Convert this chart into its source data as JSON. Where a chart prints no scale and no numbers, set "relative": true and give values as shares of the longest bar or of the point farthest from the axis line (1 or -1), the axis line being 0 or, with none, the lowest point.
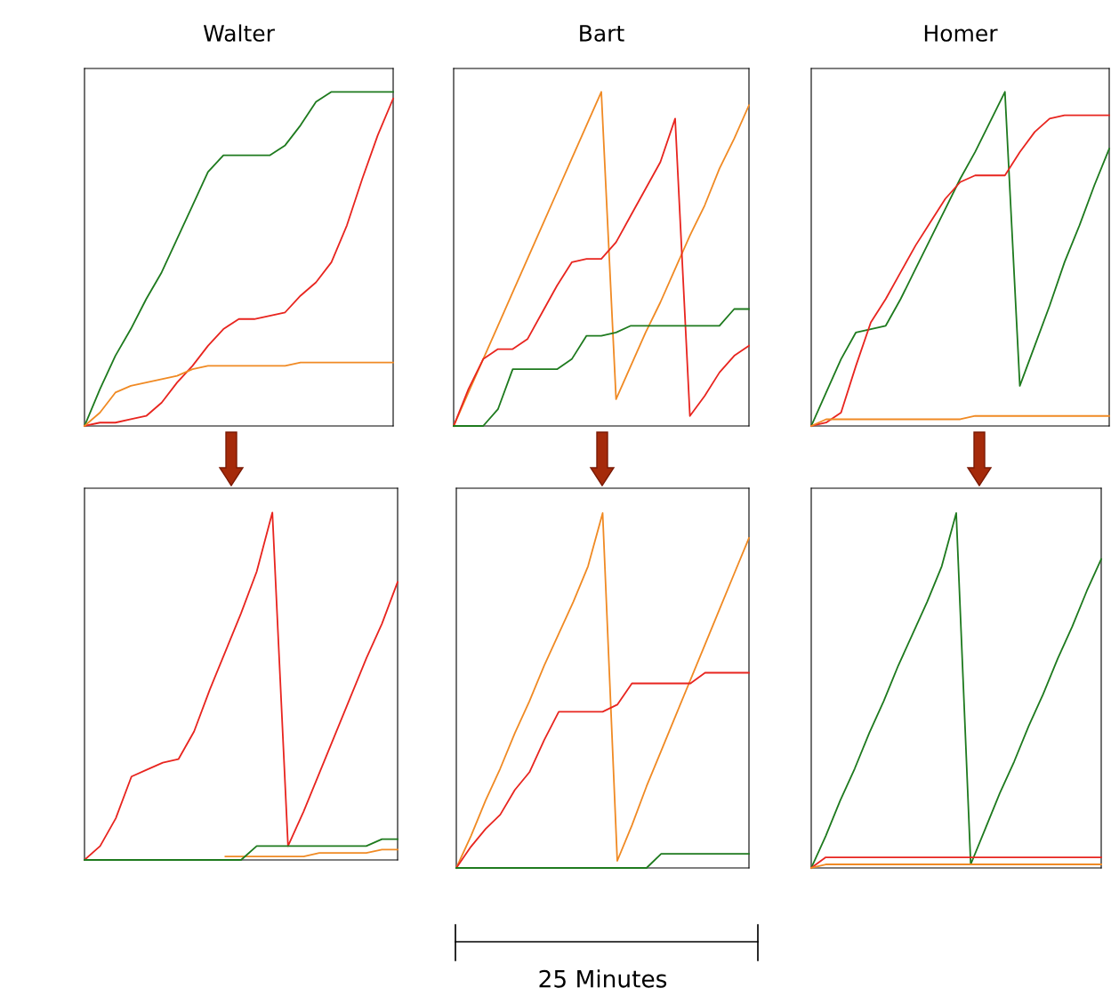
{
  "chart_data": [
    {
      "type": "line",
      "title": "Walter",
      "relative": true,
      "categories": [
        null,
        null,
        null,
        null,
        null,
        null,
        null,
        null,
        null,
        null,
        null,
        null,
        null,
        null,
        null,
        null,
        null,
        null,
        null,
        null,
        null
      ],
      "series": [
        {
          "color": "#1e7a1e",
          "values": [
            0,
            0.11,
            0.21,
            0.29,
            0.38,
            0.46,
            0.56,
            0.66,
            0.76,
            0.81,
            0.81,
            0.81,
            0.81,
            0.84,
            0.9,
            0.97,
            1,
            1,
            1,
            1,
            1
          ]
        },
        {
          "color": "#e8251f",
          "values": [
            0,
            0.01,
            0.01,
            0.02,
            0.03,
            0.07,
            0.13,
            0.18,
            0.24,
            0.29,
            0.32,
            0.32,
            0.33,
            0.34,
            0.39,
            0.43,
            0.49,
            0.6,
            0.74,
            0.87,
            0.98
          ]
        },
        {
          "color": "#f08a24",
          "values": [
            0,
            0.04,
            0.1,
            0.12,
            0.13,
            0.14,
            0.15,
            0.17,
            0.18,
            0.18,
            0.18,
            0.18,
            0.18,
            0.18,
            0.19,
            0.19,
            0.19,
            0.19,
            0.19,
            0.19,
            0.19
          ]
        }
      ]
    },
    {
      "type": "line",
      "title": "Bart",
      "relative": true,
      "categories": [
        null,
        null,
        null,
        null,
        null,
        null,
        null,
        null,
        null,
        null,
        null,
        null,
        null,
        null,
        null,
        null,
        null,
        null,
        null,
        null,
        null
      ],
      "series": [
        {
          "color": "#f08a24",
          "values": [
            0,
            0.1,
            0.2,
            0.3,
            0.4,
            0.5,
            0.6,
            0.7,
            0.8,
            0.9,
            1,
            0.08,
            0.18,
            0.28,
            0.37,
            0.47,
            0.57,
            0.66,
            0.77,
            0.86,
            0.96
          ]
        },
        {
          "color": "#e8251f",
          "values": [
            0,
            0.11,
            0.2,
            0.23,
            0.23,
            0.26,
            0.34,
            0.42,
            0.49,
            0.5,
            0.5,
            0.55,
            0.63,
            0.71,
            0.79,
            0.92,
            0.03,
            0.09,
            0.16,
            0.21,
            0.24
          ]
        },
        {
          "color": "#1e7a1e",
          "values": [
            0,
            0,
            0,
            0.05,
            0.17,
            0.17,
            0.17,
            0.17,
            0.2,
            0.27,
            0.27,
            0.28,
            0.3,
            0.3,
            0.3,
            0.3,
            0.3,
            0.3,
            0.3,
            0.35,
            0.35
          ]
        }
      ]
    },
    {
      "type": "line",
      "title": "Homer",
      "relative": true,
      "categories": [
        null,
        null,
        null,
        null,
        null,
        null,
        null,
        null,
        null,
        null,
        null,
        null,
        null,
        null,
        null,
        null,
        null,
        null,
        null,
        null,
        null
      ],
      "series": [
        {
          "color": "#1e7a1e",
          "values": [
            0,
            0.1,
            0.2,
            0.28,
            0.29,
            0.3,
            0.38,
            0.47,
            0.56,
            0.65,
            0.74,
            0.82,
            0.91,
            1,
            0.12,
            0.24,
            0.36,
            0.49,
            0.6,
            0.72,
            0.83
          ]
        },
        {
          "color": "#e8251f",
          "values": [
            0,
            0.01,
            0.04,
            0.18,
            0.31,
            0.38,
            0.46,
            0.54,
            0.61,
            0.68,
            0.73,
            0.75,
            0.75,
            0.75,
            0.82,
            0.88,
            0.92,
            0.93,
            0.93,
            0.93,
            0.93
          ]
        },
        {
          "color": "#f08a24",
          "values": [
            0,
            0.02,
            0.02,
            0.02,
            0.02,
            0.02,
            0.02,
            0.02,
            0.02,
            0.02,
            0.02,
            0.03,
            0.03,
            0.03,
            0.03,
            0.03,
            0.03,
            0.03,
            0.03,
            0.03,
            0.03
          ]
        }
      ]
    },
    {
      "type": "line",
      "relative": true,
      "categories": [
        null,
        null,
        null,
        null,
        null,
        null,
        null,
        null,
        null,
        null,
        null,
        null,
        null,
        null,
        null,
        null,
        null,
        null,
        null,
        null,
        null
      ],
      "series": [
        {
          "color": "#e8251f",
          "values": [
            0,
            0.04,
            0.12,
            0.24,
            0.26,
            0.28,
            0.29,
            0.37,
            0.49,
            0.6,
            0.71,
            0.83,
            1,
            0.04,
            0.14,
            0.25,
            0.36,
            0.47,
            0.58,
            0.68,
            0.8
          ]
        },
        {
          "color": "#f08a24",
          "values": [
            null,
            null,
            null,
            null,
            null,
            null,
            null,
            null,
            null,
            0.01,
            0.01,
            0.01,
            0.01,
            0.01,
            0.01,
            0.02,
            0.02,
            0.02,
            0.02,
            0.03,
            0.03
          ]
        },
        {
          "color": "#1e7a1e",
          "values": [
            0,
            0,
            0,
            0,
            0,
            0,
            0,
            0,
            0,
            0,
            0,
            0.04,
            0.04,
            0.04,
            0.04,
            0.04,
            0.04,
            0.04,
            0.04,
            0.06,
            0.06
          ]
        }
      ]
    },
    {
      "type": "line",
      "relative": true,
      "annotations": [
        "25 Minutes"
      ],
      "categories": [
        null,
        null,
        null,
        null,
        null,
        null,
        null,
        null,
        null,
        null,
        null,
        null,
        null,
        null,
        null,
        null,
        null,
        null,
        null,
        null,
        null
      ],
      "series": [
        {
          "color": "#f08a24",
          "values": [
            0,
            0.09,
            0.19,
            0.28,
            0.38,
            0.47,
            0.57,
            0.66,
            0.75,
            0.85,
            1,
            0.02,
            0.12,
            0.23,
            0.33,
            0.43,
            0.53,
            0.63,
            0.73,
            0.83,
            0.93
          ]
        },
        {
          "color": "#e8251f",
          "values": [
            0,
            0.06,
            0.11,
            0.15,
            0.22,
            0.27,
            0.36,
            0.44,
            0.44,
            0.44,
            0.44,
            0.46,
            0.52,
            0.52,
            0.52,
            0.52,
            0.52,
            0.55,
            0.55,
            0.55,
            0.55
          ]
        },
        {
          "color": "#1e7a1e",
          "values": [
            0,
            0,
            0,
            0,
            0,
            0,
            0,
            0,
            0,
            0,
            0,
            0,
            0,
            0,
            0.04,
            0.04,
            0.04,
            0.04,
            0.04,
            0.04,
            0.04
          ]
        }
      ]
    },
    {
      "type": "line",
      "relative": true,
      "categories": [
        null,
        null,
        null,
        null,
        null,
        null,
        null,
        null,
        null,
        null,
        null,
        null,
        null,
        null,
        null,
        null,
        null,
        null,
        null,
        null,
        null
      ],
      "series": [
        {
          "color": "#1e7a1e",
          "values": [
            0,
            0.09,
            0.19,
            0.28,
            0.38,
            0.47,
            0.57,
            0.66,
            0.75,
            0.85,
            1,
            0.01,
            0.11,
            0.21,
            0.3,
            0.4,
            0.49,
            0.59,
            0.68,
            0.78,
            0.87
          ]
        },
        {
          "color": "#e8251f",
          "values": [
            0,
            0.03,
            0.03,
            0.03,
            0.03,
            0.03,
            0.03,
            0.03,
            0.03,
            0.03,
            0.03,
            0.03,
            0.03,
            0.03,
            0.03,
            0.03,
            0.03,
            0.03,
            0.03,
            0.03,
            0.03
          ]
        },
        {
          "color": "#f08a24",
          "values": [
            0,
            0.01,
            0.01,
            0.01,
            0.01,
            0.01,
            0.01,
            0.01,
            0.01,
            0.01,
            0.01,
            0.01,
            0.01,
            0.01,
            0.01,
            0.01,
            0.01,
            0.01,
            0.01,
            0.01,
            0.01
          ]
        }
      ]
    }
  ]
}
